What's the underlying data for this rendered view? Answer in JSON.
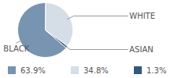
{
  "chart_data": {
    "type": "pie",
    "categories": [
      "BLACK",
      "WHITE",
      "ASIAN"
    ],
    "values": [
      63.9,
      34.8,
      1.3
    ],
    "value_labels": [
      "63.9%",
      "34.8%",
      "1.3%"
    ],
    "colors": [
      "#7794b1",
      "#d5dee7",
      "#2e5a80"
    ],
    "legend": "bottom"
  }
}
